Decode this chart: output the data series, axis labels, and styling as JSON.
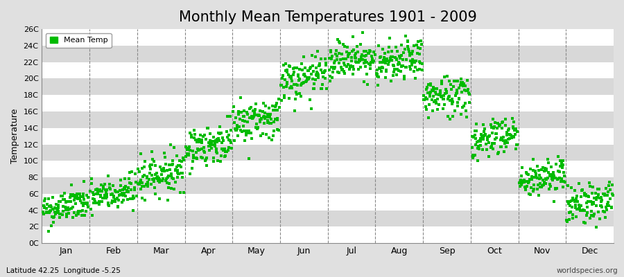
{
  "title": "Monthly Mean Temperatures 1901 - 2009",
  "ylabel": "Temperature",
  "xlabel_bottom_left": "Latitude 42.25  Longitude -5.25",
  "xlabel_bottom_right": "worldspecies.org",
  "ytick_labels": [
    "0C",
    "2C",
    "4C",
    "6C",
    "8C",
    "10C",
    "12C",
    "14C",
    "16C",
    "18C",
    "20C",
    "22C",
    "24C",
    "26C"
  ],
  "ytick_values": [
    0,
    2,
    4,
    6,
    8,
    10,
    12,
    14,
    16,
    18,
    20,
    22,
    24,
    26
  ],
  "months": [
    "Jan",
    "Feb",
    "Mar",
    "Apr",
    "May",
    "Jun",
    "Jul",
    "Aug",
    "Sep",
    "Oct",
    "Nov",
    "Dec"
  ],
  "dot_color": "#00BB00",
  "background_color": "#E0E0E0",
  "stripe_color_light": "#E8E8E8",
  "stripe_color_dark": "#D8D8D8",
  "grid_color": "#FFFFFF",
  "dashed_line_color": "#888888",
  "legend_label": "Mean Temp",
  "title_fontsize": 15,
  "axis_label_fontsize": 9,
  "monthly_mean_temps": [
    4.0,
    5.5,
    8.0,
    11.5,
    14.5,
    19.5,
    22.0,
    21.5,
    17.5,
    12.5,
    7.5,
    4.5
  ],
  "monthly_std_temps": [
    1.0,
    1.1,
    1.2,
    1.2,
    1.3,
    1.3,
    1.2,
    1.2,
    1.3,
    1.2,
    1.1,
    1.2
  ],
  "monthly_trend": [
    0.008,
    0.008,
    0.008,
    0.008,
    0.008,
    0.008,
    0.008,
    0.008,
    0.008,
    0.008,
    0.008,
    0.008
  ],
  "num_years": 109,
  "seed": 42,
  "ylim": [
    0,
    26
  ],
  "num_months": 12,
  "dot_size": 5
}
